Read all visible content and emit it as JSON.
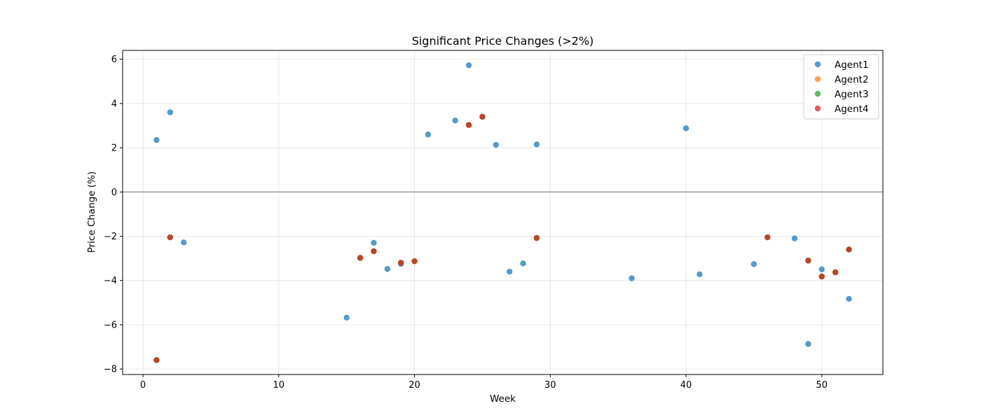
{
  "chart_data": {
    "type": "scatter",
    "title": "Significant Price Changes (>2%)",
    "xlabel": "Week",
    "ylabel": "Price Change (%)",
    "xlim": [
      -1.5,
      54.5
    ],
    "ylim": [
      -8.25,
      6.4
    ],
    "xticks": [
      0,
      10,
      20,
      30,
      40,
      50
    ],
    "yticks": [
      -8,
      -6,
      -4,
      -2,
      0,
      2,
      4,
      6
    ],
    "grid": true,
    "zero_line": true,
    "legend_position": "top-right",
    "series": [
      {
        "name": "Agent1",
        "color": "#1f77b4",
        "points": [
          [
            1,
            2.35
          ],
          [
            2,
            3.6
          ],
          [
            3,
            -2.28
          ],
          [
            15,
            -5.68
          ],
          [
            17,
            -2.3
          ],
          [
            18,
            -3.48
          ],
          [
            19,
            -3.25
          ],
          [
            21,
            2.6
          ],
          [
            23,
            3.23
          ],
          [
            24,
            5.73
          ],
          [
            26,
            2.13
          ],
          [
            27,
            -3.6
          ],
          [
            28,
            -3.23
          ],
          [
            29,
            2.15
          ],
          [
            36,
            -3.9
          ],
          [
            40,
            2.88
          ],
          [
            41,
            -3.72
          ],
          [
            45,
            -3.26
          ],
          [
            48,
            -2.1
          ],
          [
            49,
            -6.87
          ],
          [
            50,
            -3.5
          ],
          [
            52,
            -4.83
          ]
        ]
      },
      {
        "name": "Agent2",
        "color": "#ff7f0e",
        "points": [
          [
            1,
            -7.6
          ],
          [
            2,
            -2.05
          ],
          [
            16,
            -2.98
          ],
          [
            17,
            -2.68
          ],
          [
            19,
            -3.2
          ],
          [
            20,
            -3.13
          ],
          [
            24,
            3.03
          ],
          [
            25,
            3.4
          ],
          [
            29,
            -2.08
          ],
          [
            46,
            -2.05
          ],
          [
            49,
            -3.1
          ],
          [
            50,
            -3.82
          ],
          [
            51,
            -3.63
          ],
          [
            52,
            -2.6
          ]
        ]
      },
      {
        "name": "Agent3",
        "color": "#2ca02c",
        "points": [
          [
            1,
            -7.6
          ],
          [
            2,
            -2.05
          ],
          [
            16,
            -2.98
          ],
          [
            17,
            -2.68
          ],
          [
            19,
            -3.2
          ],
          [
            20,
            -3.13
          ],
          [
            24,
            3.03
          ],
          [
            25,
            3.4
          ],
          [
            29,
            -2.08
          ],
          [
            46,
            -2.05
          ],
          [
            49,
            -3.1
          ],
          [
            50,
            -3.82
          ],
          [
            51,
            -3.63
          ],
          [
            52,
            -2.6
          ]
        ]
      },
      {
        "name": "Agent4",
        "color": "#d62728",
        "points": [
          [
            1,
            -7.6
          ],
          [
            2,
            -2.05
          ],
          [
            16,
            -2.98
          ],
          [
            17,
            -2.68
          ],
          [
            19,
            -3.2
          ],
          [
            20,
            -3.13
          ],
          [
            24,
            3.03
          ],
          [
            25,
            3.4
          ],
          [
            29,
            -2.08
          ],
          [
            46,
            -2.05
          ],
          [
            49,
            -3.1
          ],
          [
            50,
            -3.82
          ],
          [
            51,
            -3.63
          ],
          [
            52,
            -2.6
          ]
        ]
      }
    ]
  }
}
